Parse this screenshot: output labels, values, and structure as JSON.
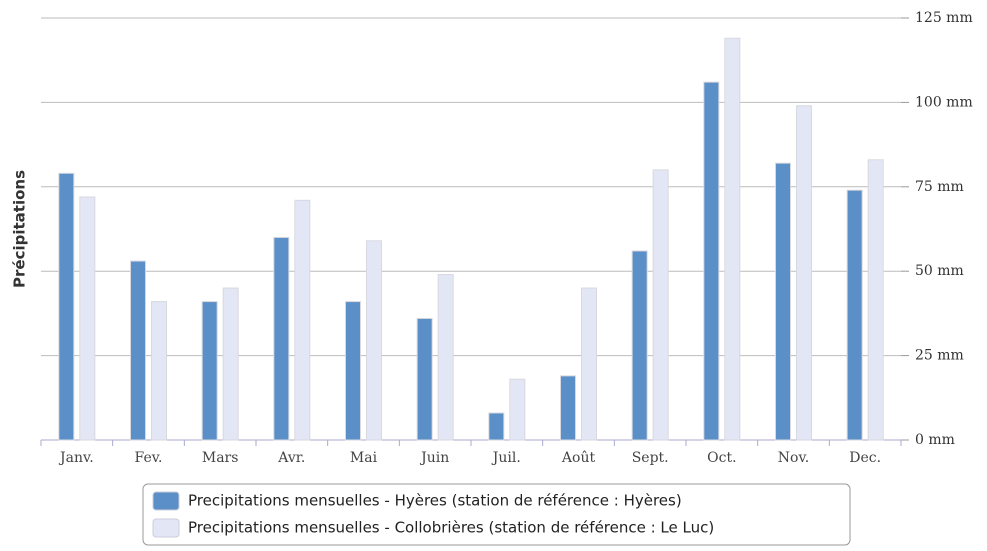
{
  "chart_data": {
    "type": "bar",
    "y_label": "Précipitations",
    "categories": [
      "Janv.",
      "Fev.",
      "Mars",
      "Avr.",
      "Mai",
      "Juin",
      "Juil.",
      "Août",
      "Sept.",
      "Oct.",
      "Nov.",
      "Dec."
    ],
    "series": [
      {
        "name": "Precipitations mensuelles - Hyères (station de référence : Hyères)",
        "color": "#5b8fc7",
        "values": [
          79,
          53,
          41,
          60,
          41,
          36,
          8,
          19,
          56,
          106,
          82,
          74
        ]
      },
      {
        "name": "Precipitations mensuelles - Collobrières (station de référence : Le Luc)",
        "color": "#e3e6f5",
        "values": [
          72,
          41,
          45,
          71,
          59,
          49,
          18,
          45,
          80,
          119,
          99,
          83
        ]
      }
    ],
    "ylim": [
      0,
      125
    ],
    "yticks": [
      {
        "value": 0,
        "label": "0 mm"
      },
      {
        "value": 25,
        "label": "25 mm"
      },
      {
        "value": 50,
        "label": "50 mm"
      },
      {
        "value": 75,
        "label": "75 mm"
      },
      {
        "value": 100,
        "label": "100 mm"
      },
      {
        "value": 125,
        "label": "125 mm"
      }
    ],
    "grid": true,
    "legend": "bottom"
  }
}
